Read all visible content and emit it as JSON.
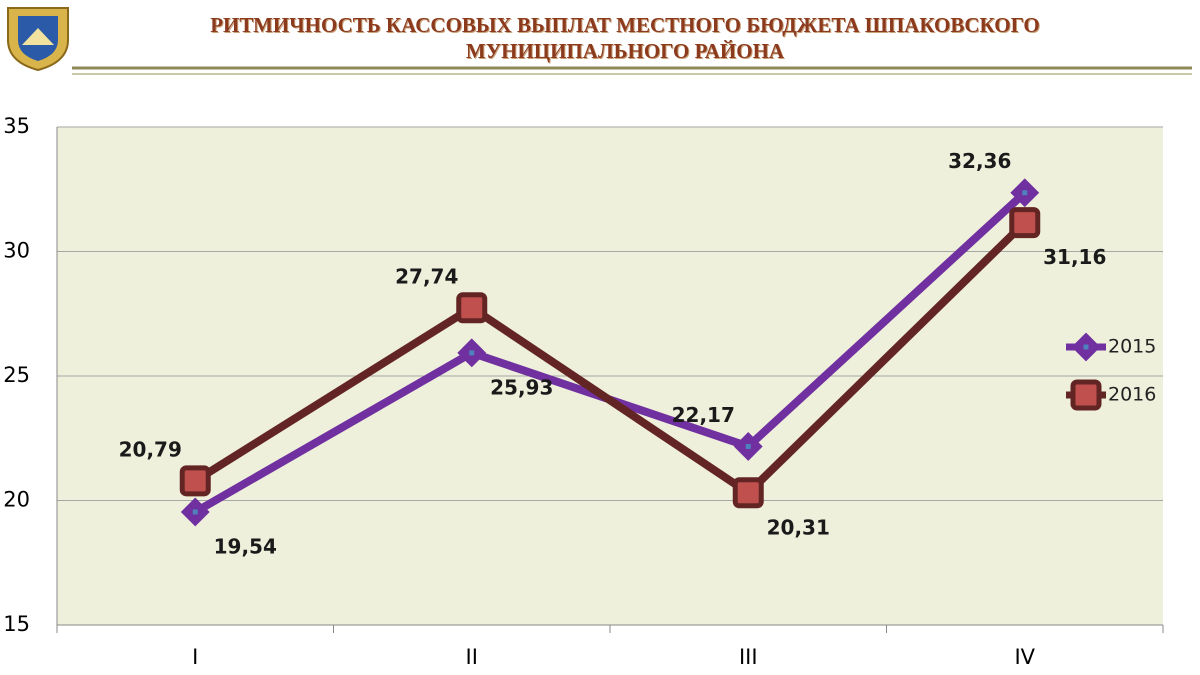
{
  "chart_data": {
    "type": "line",
    "title": "РИТМИЧНОСТЬ КАССОВЫХ ВЫПЛАТ МЕСТНОГО БЮДЖЕТА ШПАКОВСКОГО МУНИЦИПАЛЬНОГО РАЙОНА",
    "categories": [
      "I",
      "II",
      "III",
      "IV"
    ],
    "series": [
      {
        "name": "2015",
        "color": "#7030a0",
        "marker": "diamond",
        "values": [
          19.54,
          25.93,
          22.17,
          32.36
        ],
        "value_labels": [
          "19,54",
          "25,93",
          "22,17",
          "32,36"
        ]
      },
      {
        "name": "2016",
        "color": "#632523",
        "marker": "square",
        "values": [
          20.79,
          27.74,
          20.31,
          31.16
        ],
        "value_labels": [
          "20,79",
          "27,74",
          "20,31",
          "31,16"
        ]
      }
    ],
    "ylim": [
      15,
      35
    ],
    "yticks": [
      15,
      20,
      25,
      30,
      35
    ],
    "grid": true,
    "legend": "right"
  }
}
